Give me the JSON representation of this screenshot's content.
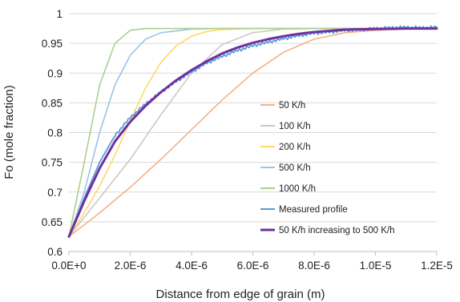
{
  "chart_data": {
    "type": "line",
    "title": "",
    "xlabel": "Distance from edge of grain (m)",
    "ylabel": "Fo (mole fraction)",
    "xlim": [
      0,
      1.2e-05
    ],
    "ylim": [
      0.6,
      1.0
    ],
    "grid": true,
    "legend_placement": "bottom-right",
    "x_ticks": [
      {
        "value": 0,
        "label": "0.0E+0"
      },
      {
        "value": 2e-06,
        "label": "2.0E-6"
      },
      {
        "value": 4e-06,
        "label": "4.0E-6"
      },
      {
        "value": 6e-06,
        "label": "6.0E-6"
      },
      {
        "value": 8e-06,
        "label": "8.0E-6"
      },
      {
        "value": 1e-05,
        "label": "1.0E-5"
      },
      {
        "value": 1.2e-05,
        "label": "1.2E-5"
      }
    ],
    "y_ticks": [
      {
        "value": 0.6,
        "label": "0.6"
      },
      {
        "value": 0.65,
        "label": "0.65"
      },
      {
        "value": 0.7,
        "label": "0.7"
      },
      {
        "value": 0.75,
        "label": "0.75"
      },
      {
        "value": 0.8,
        "label": "0.8"
      },
      {
        "value": 0.85,
        "label": "0.85"
      },
      {
        "value": 0.9,
        "label": "0.9"
      },
      {
        "value": 0.95,
        "label": "0.95"
      },
      {
        "value": 1.0,
        "label": "1"
      }
    ],
    "series": [
      {
        "name": "50 K/h",
        "color": "#f4b183",
        "x": [
          0,
          1e-06,
          2e-06,
          3e-06,
          4e-06,
          5e-06,
          6e-06,
          7e-06,
          8e-06,
          9e-06,
          1e-05,
          1.1e-05,
          1.2e-05
        ],
        "y": [
          0.625,
          0.665,
          0.708,
          0.755,
          0.805,
          0.855,
          0.9,
          0.935,
          0.957,
          0.968,
          0.972,
          0.974,
          0.975
        ]
      },
      {
        "name": "100 K/h",
        "color": "#c9c9c9",
        "x": [
          0,
          1e-06,
          2e-06,
          3e-06,
          4e-06,
          5e-06,
          6e-06,
          7e-06,
          8e-06,
          9e-06,
          1e-05,
          1.2e-05
        ],
        "y": [
          0.625,
          0.69,
          0.755,
          0.83,
          0.9,
          0.948,
          0.968,
          0.974,
          0.975,
          0.975,
          0.975,
          0.975
        ]
      },
      {
        "name": "200 K/h",
        "color": "#ffd966",
        "x": [
          0,
          5e-07,
          1e-06,
          1.5e-06,
          2e-06,
          2.5e-06,
          3e-06,
          3.5e-06,
          4e-06,
          4.5e-06,
          5e-06,
          6e-06,
          8e-06,
          1.2e-05
        ],
        "y": [
          0.625,
          0.665,
          0.71,
          0.762,
          0.82,
          0.875,
          0.918,
          0.946,
          0.962,
          0.97,
          0.973,
          0.975,
          0.975,
          0.975
        ]
      },
      {
        "name": "500 K/h",
        "color": "#9dc3e6",
        "x": [
          0,
          5e-07,
          1e-06,
          1.5e-06,
          2e-06,
          2.5e-06,
          3e-06,
          4e-06,
          5e-06,
          6e-06,
          1.2e-05
        ],
        "y": [
          0.625,
          0.7,
          0.8,
          0.88,
          0.93,
          0.957,
          0.968,
          0.974,
          0.975,
          0.975,
          0.975
        ]
      },
      {
        "name": "1000 K/h",
        "color": "#a9d18e",
        "x": [
          0,
          5e-07,
          1e-06,
          1.5e-06,
          2e-06,
          2.5e-06,
          3e-06,
          4e-06,
          1.2e-05
        ],
        "y": [
          0.625,
          0.75,
          0.88,
          0.95,
          0.972,
          0.975,
          0.975,
          0.975,
          0.975
        ]
      },
      {
        "name": "Measured profile",
        "color": "#5b9bd5",
        "x": [
          0,
          5e-07,
          1e-06,
          1.5e-06,
          2e-06,
          2.5e-06,
          3e-06,
          3.5e-06,
          4e-06,
          4.5e-06,
          5e-06,
          5.5e-06,
          6e-06,
          6.5e-06,
          7e-06,
          7.5e-06,
          8e-06,
          8.5e-06,
          9e-06,
          9.5e-06,
          1e-05,
          1.05e-05,
          1.1e-05,
          1.15e-05,
          1.2e-05
        ],
        "y": [
          0.625,
          0.69,
          0.75,
          0.795,
          0.825,
          0.848,
          0.868,
          0.886,
          0.902,
          0.917,
          0.928,
          0.938,
          0.946,
          0.952,
          0.958,
          0.963,
          0.967,
          0.969,
          0.972,
          0.973,
          0.975,
          0.976,
          0.977,
          0.976,
          0.977
        ]
      },
      {
        "name": "50 K/h increasing to 500 K/h",
        "color": "#7030a0",
        "x": [
          0,
          5e-07,
          1e-06,
          1.5e-06,
          2e-06,
          2.5e-06,
          3e-06,
          3.5e-06,
          4e-06,
          4.5e-06,
          5e-06,
          5.5e-06,
          6e-06,
          6.5e-06,
          7e-06,
          7.5e-06,
          8e-06,
          8.5e-06,
          9e-06,
          1e-05,
          1.1e-05,
          1.2e-05
        ],
        "y": [
          0.625,
          0.685,
          0.74,
          0.785,
          0.818,
          0.845,
          0.868,
          0.888,
          0.905,
          0.92,
          0.933,
          0.943,
          0.951,
          0.957,
          0.962,
          0.966,
          0.969,
          0.971,
          0.973,
          0.974,
          0.975,
          0.975
        ]
      }
    ]
  }
}
